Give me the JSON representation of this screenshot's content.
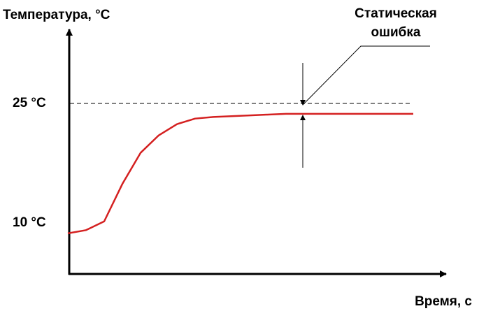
{
  "chart_data": {
    "type": "line",
    "y_label": "Температура, °C",
    "x_label": "Время, с",
    "annotation": [
      "Статическая",
      "ошибка"
    ],
    "categories": [
      null,
      null,
      null,
      null,
      null,
      null,
      null,
      null,
      null,
      null,
      null,
      null,
      null,
      null,
      null,
      null,
      null,
      null,
      null,
      null
    ],
    "series": [
      {
        "name": null,
        "color": "#d42020",
        "values": [
          8.7,
          9.1,
          10.2,
          14.9,
          18.8,
          21.0,
          22.4,
          23.1,
          23.3,
          23.4,
          23.5,
          23.6,
          23.7,
          23.7,
          23.7,
          23.7,
          23.7,
          23.7,
          23.7,
          23.7
        ]
      }
    ],
    "ylim": [
      3.6,
      34.3
    ],
    "yticks": [
      {
        "value": 10,
        "label": "10 °C"
      },
      {
        "value": 25,
        "label": "25 °C"
      }
    ]
  }
}
